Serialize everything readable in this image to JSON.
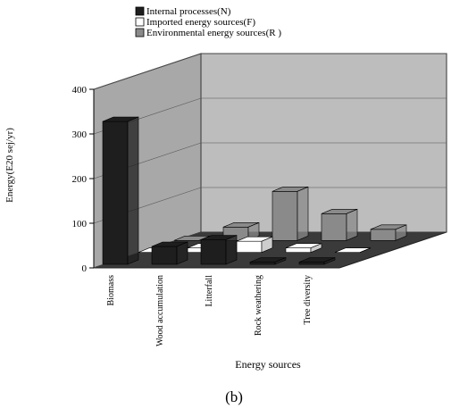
{
  "chart_data": {
    "type": "bar3d",
    "y_label": "Energy(E20 sej/yr)",
    "x_label": "Energy sources",
    "caption": "(b)",
    "categories": [
      "Biomass",
      "Wood accumulation",
      "Litterfall",
      "Rock weathering",
      "Tree diversity"
    ],
    "series": [
      {
        "name": "Internal processes(N)",
        "color": "#1e1e1e",
        "values": [
          320,
          40,
          55,
          5,
          5
        ]
      },
      {
        "name": "Imported energy sources(F)",
        "color": "#ffffff",
        "values": [
          0,
          10,
          25,
          10,
          0
        ]
      },
      {
        "name": "Environmental energy sources(R )",
        "color": "#8a8a8a",
        "values": [
          0,
          30,
          110,
          60,
          25
        ]
      }
    ],
    "ylim": [
      0,
      400
    ],
    "yticks": [
      0,
      100,
      200,
      300,
      400
    ],
    "grid": true
  }
}
